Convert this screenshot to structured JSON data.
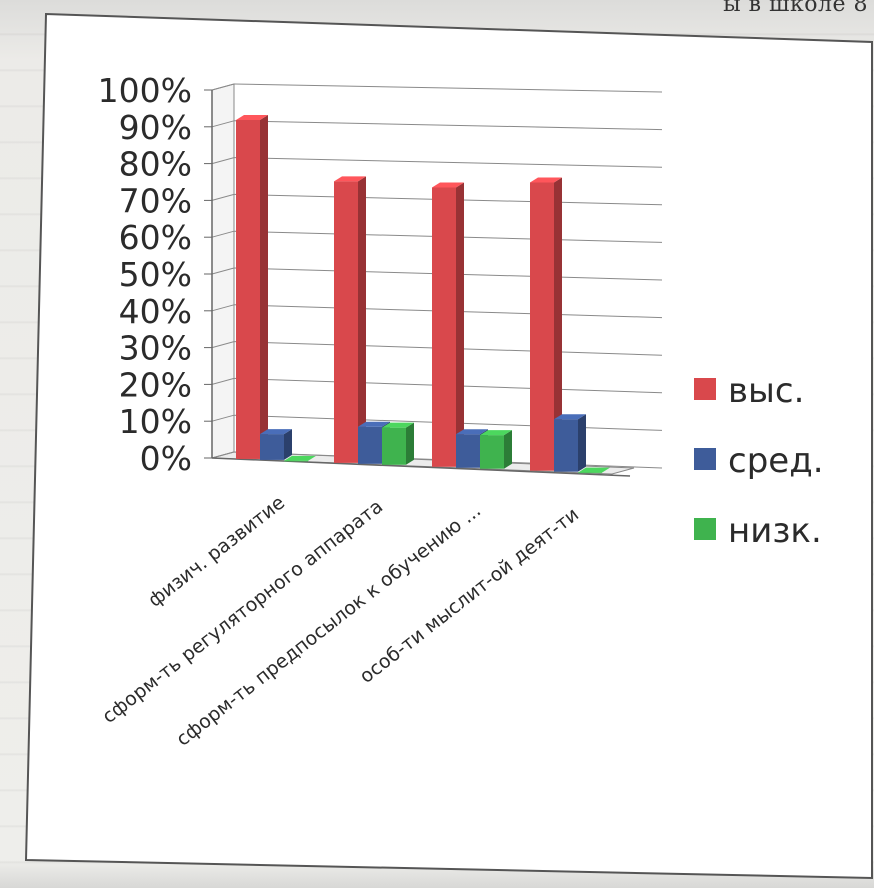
{
  "page": {
    "top_caption": "ы в школе 8"
  },
  "chart_data": {
    "type": "bar",
    "categories": [
      "физич. развитие",
      "сформ-ть регуляторного аппарата",
      "сформ-ть предпосылок к обучению ...",
      "особ-ти мыслит-ой деят-ти"
    ],
    "series": [
      {
        "name": "выс.",
        "values": [
          92,
          76,
          75,
          77
        ],
        "color": "#d9484c"
      },
      {
        "name": "сред.",
        "values": [
          7,
          10,
          9,
          14
        ],
        "color": "#3e5c9a"
      },
      {
        "name": "низк.",
        "values": [
          0,
          10,
          9,
          0
        ],
        "color": "#3fb34e"
      }
    ],
    "ylim": [
      0,
      100
    ],
    "yticks": [
      "0%",
      "10%",
      "20%",
      "30%",
      "40%",
      "50%",
      "60%",
      "70%",
      "80%",
      "90%",
      "100%"
    ],
    "grid": true,
    "legend": "right",
    "style": "3d-clustered"
  }
}
